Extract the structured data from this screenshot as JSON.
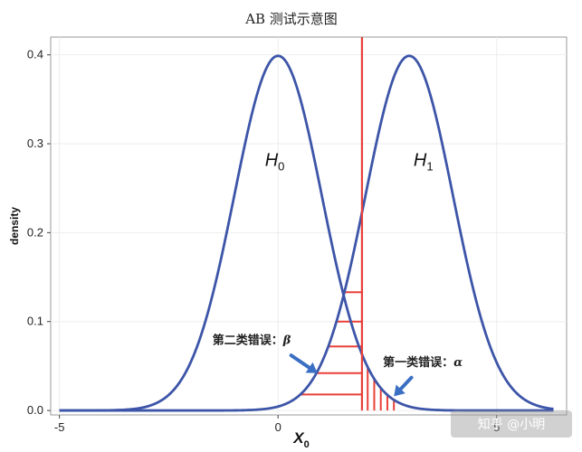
{
  "chart_data": {
    "type": "line",
    "title": "AB 测试示意图",
    "xlabel": "X",
    "xlabel_sub": "0",
    "ylabel": "density",
    "xlim": [
      -5.2,
      6.6
    ],
    "ylim": [
      -0.005,
      0.42
    ],
    "x_ticks": [
      -5,
      0,
      5
    ],
    "x_tick_labels": [
      "-5",
      "0",
      "5"
    ],
    "y_ticks": [
      0.0,
      0.1,
      0.2,
      0.3,
      0.4
    ],
    "y_tick_labels": [
      "0.0",
      "0.1",
      "0.2",
      "0.3",
      "0.4"
    ],
    "grid": true,
    "series": [
      {
        "label": "H",
        "label_sub": "0",
        "mean": 0,
        "sd": 1,
        "color": "#3d55a8",
        "label_at": [
          -0.3,
          0.275
        ]
      },
      {
        "label": "H",
        "label_sub": "1",
        "mean": 3,
        "sd": 1,
        "color": "#3d55a8",
        "label_at": [
          3.1,
          0.275
        ]
      }
    ],
    "critical_value": 1.92,
    "critical_color": "#e8403a",
    "hatch_beta_y": [
      0.018,
      0.042,
      0.072,
      0.1,
      0.133
    ],
    "hatch_alpha_x": [
      2.05,
      2.2,
      2.35,
      2.5,
      2.65
    ],
    "annotations": [
      {
        "text": "第二类错误：",
        "symbol": "β",
        "label_at": [
          -1.5,
          0.075
        ],
        "arrow_from": [
          0.3,
          0.062
        ],
        "arrow_to": [
          0.9,
          0.042
        ]
      },
      {
        "text": "第一类错误：",
        "symbol": "α",
        "label_at": [
          2.4,
          0.05
        ],
        "arrow_from": [
          3.05,
          0.037
        ],
        "arrow_to": [
          2.65,
          0.016
        ]
      }
    ]
  },
  "watermark": "知乎 @小明"
}
